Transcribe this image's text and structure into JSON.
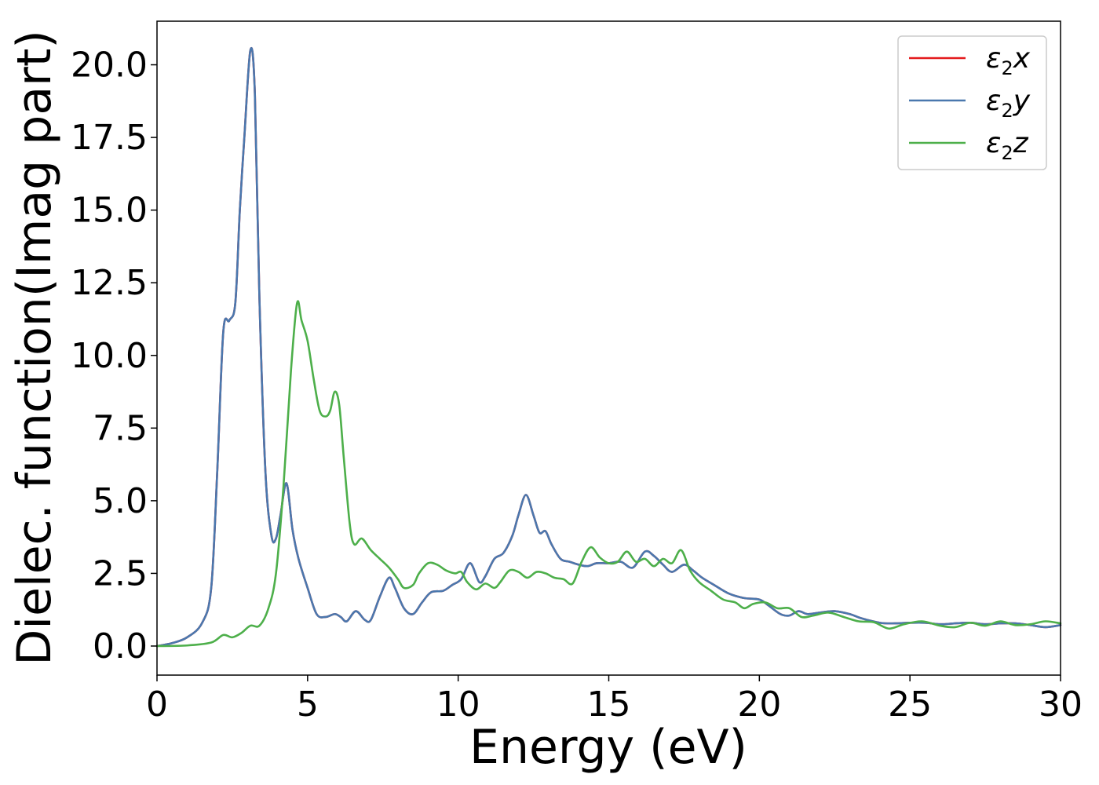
{
  "chart_data": {
    "type": "line",
    "xlabel": "Energy (eV)",
    "ylabel": "Dielec. function(Imag part)",
    "xlim": [
      0,
      30
    ],
    "ylim": [
      -1.0,
      21.5
    ],
    "xticks": [
      0,
      5,
      10,
      15,
      20,
      25,
      30
    ],
    "xtick_labels": [
      "0",
      "5",
      "10",
      "15",
      "20",
      "25",
      "30"
    ],
    "yticks": [
      0,
      2.5,
      5,
      7.5,
      10,
      12.5,
      15,
      17.5,
      20
    ],
    "ytick_labels": [
      "0.0",
      "2.5",
      "5.0",
      "7.5",
      "10.0",
      "12.5",
      "15.0",
      "17.5",
      "20.0"
    ],
    "grid": false,
    "legend_position": "top-right",
    "series": [
      {
        "name": "ε2x",
        "legend": {
          "base": "ε",
          "sub": "2",
          "tail": "x"
        },
        "color": "#e41a1c",
        "points": [
          [
            0,
            0
          ],
          [
            0.5,
            0.1
          ],
          [
            1.0,
            0.3
          ],
          [
            1.5,
            0.8
          ],
          [
            1.8,
            2.0
          ],
          [
            2.0,
            6.0
          ],
          [
            2.2,
            10.8
          ],
          [
            2.4,
            11.2
          ],
          [
            2.6,
            11.8
          ],
          [
            2.75,
            15.0
          ],
          [
            2.9,
            17.5
          ],
          [
            3.1,
            20.5
          ],
          [
            3.25,
            19.0
          ],
          [
            3.4,
            12.0
          ],
          [
            3.6,
            6.0
          ],
          [
            3.8,
            3.8
          ],
          [
            3.95,
            3.7
          ],
          [
            4.1,
            4.5
          ],
          [
            4.3,
            5.6
          ],
          [
            4.5,
            4.0
          ],
          [
            4.7,
            3.0
          ],
          [
            5.0,
            2.0
          ],
          [
            5.3,
            1.1
          ],
          [
            5.6,
            1.0
          ],
          [
            5.9,
            1.1
          ],
          [
            6.1,
            1.0
          ],
          [
            6.3,
            0.85
          ],
          [
            6.6,
            1.2
          ],
          [
            6.9,
            0.9
          ],
          [
            7.1,
            0.9
          ],
          [
            7.4,
            1.7
          ],
          [
            7.7,
            2.35
          ],
          [
            7.9,
            2.0
          ],
          [
            8.2,
            1.3
          ],
          [
            8.5,
            1.1
          ],
          [
            8.8,
            1.5
          ],
          [
            9.1,
            1.85
          ],
          [
            9.5,
            1.9
          ],
          [
            9.8,
            2.1
          ],
          [
            10.1,
            2.3
          ],
          [
            10.4,
            2.85
          ],
          [
            10.7,
            2.2
          ],
          [
            10.9,
            2.4
          ],
          [
            11.2,
            3.0
          ],
          [
            11.5,
            3.2
          ],
          [
            11.8,
            3.8
          ],
          [
            12.0,
            4.5
          ],
          [
            12.25,
            5.2
          ],
          [
            12.5,
            4.5
          ],
          [
            12.7,
            3.9
          ],
          [
            12.9,
            3.95
          ],
          [
            13.1,
            3.5
          ],
          [
            13.4,
            3.0
          ],
          [
            13.7,
            2.9
          ],
          [
            14.0,
            2.8
          ],
          [
            14.3,
            2.75
          ],
          [
            14.6,
            2.85
          ],
          [
            15.0,
            2.85
          ],
          [
            15.4,
            2.9
          ],
          [
            15.8,
            2.7
          ],
          [
            16.2,
            3.25
          ],
          [
            16.5,
            3.1
          ],
          [
            16.8,
            2.8
          ],
          [
            17.1,
            2.55
          ],
          [
            17.5,
            2.8
          ],
          [
            17.8,
            2.6
          ],
          [
            18.1,
            2.35
          ],
          [
            18.5,
            2.1
          ],
          [
            19.0,
            1.8
          ],
          [
            19.5,
            1.65
          ],
          [
            20.0,
            1.6
          ],
          [
            20.3,
            1.4
          ],
          [
            20.7,
            1.1
          ],
          [
            21.0,
            1.05
          ],
          [
            21.3,
            1.2
          ],
          [
            21.6,
            1.1
          ],
          [
            22.0,
            1.15
          ],
          [
            22.5,
            1.2
          ],
          [
            23.0,
            1.1
          ],
          [
            23.4,
            0.95
          ],
          [
            24.0,
            0.8
          ],
          [
            24.5,
            0.78
          ],
          [
            25.0,
            0.8
          ],
          [
            25.5,
            0.8
          ],
          [
            26.0,
            0.75
          ],
          [
            26.5,
            0.78
          ],
          [
            27.0,
            0.8
          ],
          [
            27.5,
            0.75
          ],
          [
            28.0,
            0.78
          ],
          [
            28.5,
            0.78
          ],
          [
            29.0,
            0.72
          ],
          [
            29.5,
            0.65
          ],
          [
            30.0,
            0.72
          ]
        ]
      },
      {
        "name": "ε2y",
        "legend": {
          "base": "ε",
          "sub": "2",
          "tail": "y"
        },
        "color": "#4a78ae",
        "points": [
          [
            0,
            0
          ],
          [
            0.5,
            0.1
          ],
          [
            1.0,
            0.3
          ],
          [
            1.5,
            0.8
          ],
          [
            1.8,
            2.0
          ],
          [
            2.0,
            6.0
          ],
          [
            2.2,
            10.8
          ],
          [
            2.4,
            11.2
          ],
          [
            2.6,
            11.8
          ],
          [
            2.75,
            15.0
          ],
          [
            2.9,
            17.5
          ],
          [
            3.1,
            20.5
          ],
          [
            3.25,
            19.0
          ],
          [
            3.4,
            12.0
          ],
          [
            3.6,
            6.0
          ],
          [
            3.8,
            3.8
          ],
          [
            3.95,
            3.7
          ],
          [
            4.1,
            4.5
          ],
          [
            4.3,
            5.6
          ],
          [
            4.5,
            4.0
          ],
          [
            4.7,
            3.0
          ],
          [
            5.0,
            2.0
          ],
          [
            5.3,
            1.1
          ],
          [
            5.6,
            1.0
          ],
          [
            5.9,
            1.1
          ],
          [
            6.1,
            1.0
          ],
          [
            6.3,
            0.85
          ],
          [
            6.6,
            1.2
          ],
          [
            6.9,
            0.9
          ],
          [
            7.1,
            0.9
          ],
          [
            7.4,
            1.7
          ],
          [
            7.7,
            2.35
          ],
          [
            7.9,
            2.0
          ],
          [
            8.2,
            1.3
          ],
          [
            8.5,
            1.1
          ],
          [
            8.8,
            1.5
          ],
          [
            9.1,
            1.85
          ],
          [
            9.5,
            1.9
          ],
          [
            9.8,
            2.1
          ],
          [
            10.1,
            2.3
          ],
          [
            10.4,
            2.85
          ],
          [
            10.7,
            2.2
          ],
          [
            10.9,
            2.4
          ],
          [
            11.2,
            3.0
          ],
          [
            11.5,
            3.2
          ],
          [
            11.8,
            3.8
          ],
          [
            12.0,
            4.5
          ],
          [
            12.25,
            5.2
          ],
          [
            12.5,
            4.5
          ],
          [
            12.7,
            3.9
          ],
          [
            12.9,
            3.95
          ],
          [
            13.1,
            3.5
          ],
          [
            13.4,
            3.0
          ],
          [
            13.7,
            2.9
          ],
          [
            14.0,
            2.8
          ],
          [
            14.3,
            2.75
          ],
          [
            14.6,
            2.85
          ],
          [
            15.0,
            2.85
          ],
          [
            15.4,
            2.9
          ],
          [
            15.8,
            2.7
          ],
          [
            16.2,
            3.25
          ],
          [
            16.5,
            3.1
          ],
          [
            16.8,
            2.8
          ],
          [
            17.1,
            2.55
          ],
          [
            17.5,
            2.8
          ],
          [
            17.8,
            2.6
          ],
          [
            18.1,
            2.35
          ],
          [
            18.5,
            2.1
          ],
          [
            19.0,
            1.8
          ],
          [
            19.5,
            1.65
          ],
          [
            20.0,
            1.6
          ],
          [
            20.3,
            1.4
          ],
          [
            20.7,
            1.1
          ],
          [
            21.0,
            1.05
          ],
          [
            21.3,
            1.2
          ],
          [
            21.6,
            1.1
          ],
          [
            22.0,
            1.15
          ],
          [
            22.5,
            1.2
          ],
          [
            23.0,
            1.1
          ],
          [
            23.4,
            0.95
          ],
          [
            24.0,
            0.8
          ],
          [
            24.5,
            0.78
          ],
          [
            25.0,
            0.8
          ],
          [
            25.5,
            0.8
          ],
          [
            26.0,
            0.75
          ],
          [
            26.5,
            0.78
          ],
          [
            27.0,
            0.8
          ],
          [
            27.5,
            0.75
          ],
          [
            28.0,
            0.78
          ],
          [
            28.5,
            0.78
          ],
          [
            29.0,
            0.72
          ],
          [
            29.5,
            0.65
          ],
          [
            30.0,
            0.72
          ]
        ]
      },
      {
        "name": "ε2z",
        "legend": {
          "base": "ε",
          "sub": "2",
          "tail": "z"
        },
        "color": "#4daf4a",
        "points": [
          [
            0,
            0
          ],
          [
            1.0,
            0.02
          ],
          [
            1.8,
            0.12
          ],
          [
            2.2,
            0.38
          ],
          [
            2.5,
            0.3
          ],
          [
            2.8,
            0.45
          ],
          [
            3.1,
            0.7
          ],
          [
            3.4,
            0.7
          ],
          [
            3.7,
            1.3
          ],
          [
            3.95,
            2.5
          ],
          [
            4.2,
            5.5
          ],
          [
            4.45,
            9.5
          ],
          [
            4.65,
            11.8
          ],
          [
            4.8,
            11.2
          ],
          [
            5.0,
            10.5
          ],
          [
            5.2,
            9.2
          ],
          [
            5.4,
            8.1
          ],
          [
            5.6,
            7.9
          ],
          [
            5.75,
            8.1
          ],
          [
            5.9,
            8.75
          ],
          [
            6.05,
            8.3
          ],
          [
            6.2,
            6.5
          ],
          [
            6.4,
            4.2
          ],
          [
            6.55,
            3.5
          ],
          [
            6.8,
            3.7
          ],
          [
            7.1,
            3.3
          ],
          [
            7.4,
            3.0
          ],
          [
            7.7,
            2.7
          ],
          [
            8.0,
            2.3
          ],
          [
            8.2,
            2.0
          ],
          [
            8.5,
            2.1
          ],
          [
            8.7,
            2.5
          ],
          [
            9.0,
            2.85
          ],
          [
            9.3,
            2.8
          ],
          [
            9.6,
            2.6
          ],
          [
            9.9,
            2.5
          ],
          [
            10.1,
            2.55
          ],
          [
            10.3,
            2.2
          ],
          [
            10.6,
            1.95
          ],
          [
            10.9,
            2.15
          ],
          [
            11.2,
            2.0
          ],
          [
            11.4,
            2.2
          ],
          [
            11.7,
            2.6
          ],
          [
            12.0,
            2.55
          ],
          [
            12.3,
            2.35
          ],
          [
            12.6,
            2.55
          ],
          [
            12.9,
            2.5
          ],
          [
            13.2,
            2.35
          ],
          [
            13.5,
            2.3
          ],
          [
            13.8,
            2.15
          ],
          [
            14.1,
            2.9
          ],
          [
            14.4,
            3.4
          ],
          [
            14.7,
            3.05
          ],
          [
            15.0,
            2.85
          ],
          [
            15.3,
            2.9
          ],
          [
            15.6,
            3.25
          ],
          [
            15.9,
            2.9
          ],
          [
            16.2,
            3.0
          ],
          [
            16.5,
            2.75
          ],
          [
            16.8,
            3.0
          ],
          [
            17.1,
            2.85
          ],
          [
            17.4,
            3.3
          ],
          [
            17.7,
            2.6
          ],
          [
            18.0,
            2.2
          ],
          [
            18.4,
            1.9
          ],
          [
            18.8,
            1.6
          ],
          [
            19.2,
            1.5
          ],
          [
            19.5,
            1.3
          ],
          [
            19.8,
            1.45
          ],
          [
            20.2,
            1.5
          ],
          [
            20.6,
            1.3
          ],
          [
            21.0,
            1.3
          ],
          [
            21.4,
            1.0
          ],
          [
            21.8,
            1.05
          ],
          [
            22.3,
            1.15
          ],
          [
            22.8,
            1.0
          ],
          [
            23.3,
            0.85
          ],
          [
            23.8,
            0.82
          ],
          [
            24.3,
            0.6
          ],
          [
            24.8,
            0.75
          ],
          [
            25.4,
            0.85
          ],
          [
            26.0,
            0.7
          ],
          [
            26.5,
            0.65
          ],
          [
            27.0,
            0.8
          ],
          [
            27.5,
            0.7
          ],
          [
            28.0,
            0.85
          ],
          [
            28.5,
            0.72
          ],
          [
            29.0,
            0.75
          ],
          [
            29.5,
            0.85
          ],
          [
            30.0,
            0.78
          ]
        ]
      }
    ]
  }
}
